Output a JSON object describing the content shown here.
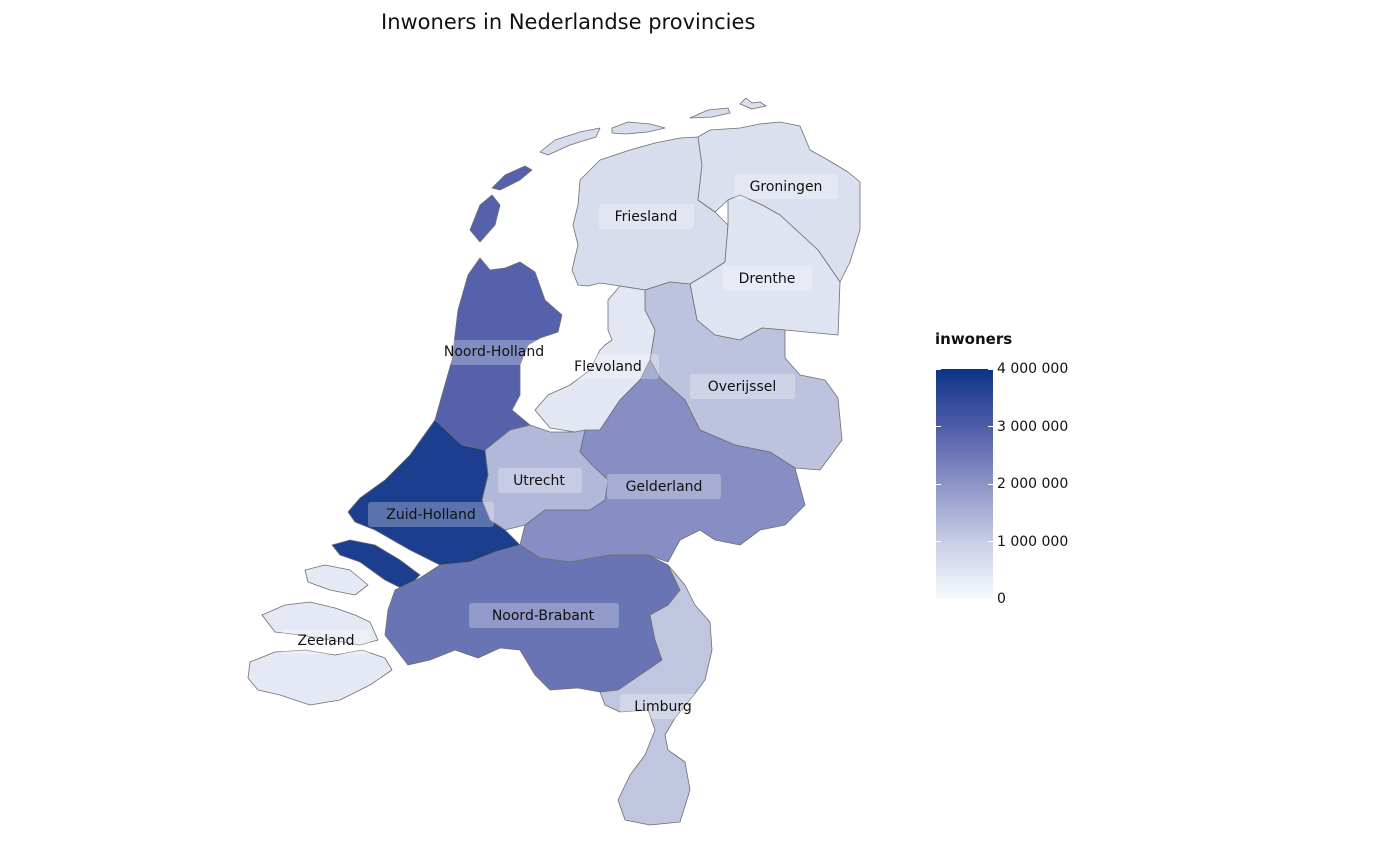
{
  "title": "Inwoners in Nederlandse provincies",
  "legend": {
    "title": "inwoners",
    "min": 0,
    "max": 4000000,
    "ticks": [
      {
        "value": 0,
        "label": "0"
      },
      {
        "value": 1000000,
        "label": "1 000 000"
      },
      {
        "value": 2000000,
        "label": "2 000 000"
      },
      {
        "value": 3000000,
        "label": "3 000 000"
      },
      {
        "value": 4000000,
        "label": "4 000 000"
      }
    ],
    "colors": [
      "#f7fbff",
      "#c7cde4",
      "#8d94c6",
      "#4f5ca8",
      "#0b3485"
    ]
  },
  "provinces": [
    {
      "id": "groningen",
      "name": "Groningen",
      "inwoners": 590000
    },
    {
      "id": "friesland",
      "name": "Friesland",
      "inwoners": 650000
    },
    {
      "id": "drenthe",
      "name": "Drenthe",
      "inwoners": 495000
    },
    {
      "id": "overijssel",
      "name": "Overijssel",
      "inwoners": 1170000
    },
    {
      "id": "flevoland",
      "name": "Flevoland",
      "inwoners": 430000
    },
    {
      "id": "gelderland",
      "name": "Gelderland",
      "inwoners": 2100000
    },
    {
      "id": "utrecht",
      "name": "Utrecht",
      "inwoners": 1370000
    },
    {
      "id": "noord-holland",
      "name": "Noord-Holland",
      "inwoners": 2900000
    },
    {
      "id": "zuid-holland",
      "name": "Zuid-Holland",
      "inwoners": 3750000
    },
    {
      "id": "zeeland",
      "name": "Zeeland",
      "inwoners": 385000
    },
    {
      "id": "noord-brabant",
      "name": "Noord-Brabant",
      "inwoners": 2580000
    },
    {
      "id": "limburg",
      "name": "Limburg",
      "inwoners": 1120000
    }
  ]
}
